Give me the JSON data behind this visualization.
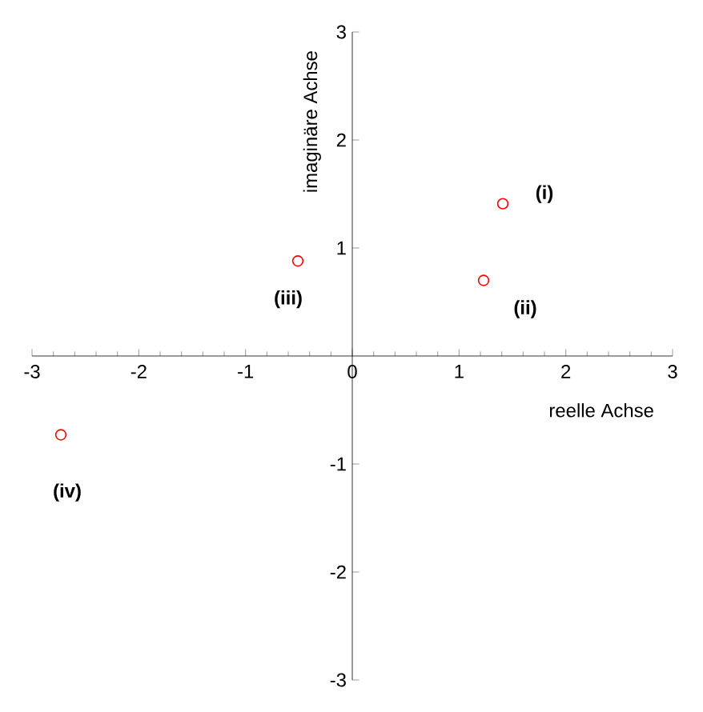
{
  "chart_data": {
    "type": "scatter",
    "xlabel": "reelle Achse",
    "ylabel": "imaginäre Achse",
    "x": [
      1.41,
      1.23,
      -0.51,
      -2.73
    ],
    "series": [
      {
        "color": "#ff0000",
        "values": [
          1.41,
          0.7,
          0.88,
          -0.73
        ]
      }
    ],
    "xlim": [
      -3,
      3
    ],
    "ylim": [
      -3,
      3
    ],
    "xticks": [
      -3,
      -2,
      -1,
      0,
      1,
      2,
      3
    ],
    "yticks": [
      -3,
      -2,
      -1,
      1,
      2,
      3
    ],
    "marker": "circle",
    "grid": false,
    "annotations": [
      {
        "text": "**(i)**",
        "x": 1.41,
        "y": 1.41
      },
      {
        "text": "**(ii)**",
        "x": 1.23,
        "y": 0.7
      },
      {
        "text": "**(iii)**",
        "x": -0.51,
        "y": 0.88
      },
      {
        "text": "**(iv)**",
        "x": -2.73,
        "y": -0.73
      }
    ]
  }
}
